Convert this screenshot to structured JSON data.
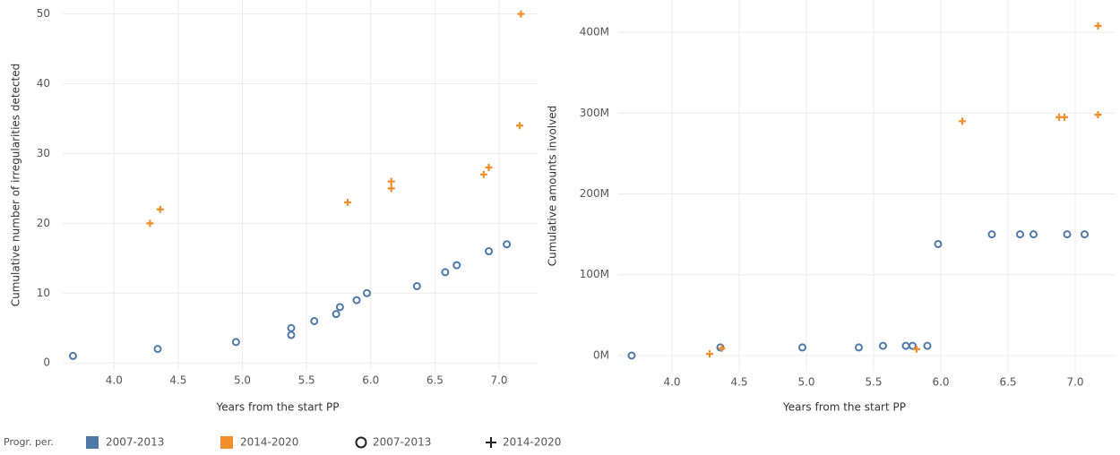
{
  "chart_data": [
    {
      "type": "scatter",
      "x_label": "Years from the start PP",
      "y_label": "Cumulative number of irregularities detected",
      "legend_title": "Progr. per.",
      "xlim": [
        3.6,
        7.3
      ],
      "ylim": [
        -1,
        52
      ],
      "xticks": [
        {
          "value": 4,
          "label": "4.0"
        },
        4.5,
        {
          "value": 5,
          "label": "5.0"
        },
        5.5,
        {
          "value": 6,
          "label": "6.0"
        },
        6.5,
        {
          "value": 7,
          "label": "7.0"
        }
      ],
      "yticks": [
        0,
        10,
        20,
        30,
        40,
        50
      ],
      "grid": true,
      "series": [
        {
          "name": "2007-2013",
          "color": "#4e79a7",
          "marker": "circle",
          "x": [
            3.68,
            4.34,
            4.95,
            5.38,
            5.38,
            5.56,
            5.73,
            5.76,
            5.89,
            5.97,
            6.36,
            6.58,
            6.67,
            6.92,
            7.06
          ],
          "values": [
            1,
            2,
            3,
            4,
            5,
            6,
            7,
            8,
            9,
            10,
            11,
            13,
            14,
            16,
            17
          ]
        },
        {
          "name": "2014-2020",
          "color": "#f28e2b",
          "marker": "plus",
          "x": [
            4.28,
            4.36,
            5.82,
            6.16,
            6.16,
            6.88,
            6.92,
            7.16,
            7.17
          ],
          "values": [
            20,
            22,
            23,
            25,
            26,
            27,
            28,
            34,
            50
          ]
        }
      ]
    },
    {
      "type": "scatter",
      "x_label": "Years from the start PP",
      "y_label": "Cumulative amounts involved",
      "xlim": [
        3.6,
        7.3
      ],
      "ylim": [
        -20000000,
        440000000
      ],
      "xticks": [
        {
          "value": 4,
          "label": "4.0"
        },
        4.5,
        {
          "value": 5,
          "label": "5.0"
        },
        5.5,
        {
          "value": 6,
          "label": "6.0"
        },
        6.5,
        {
          "value": 7,
          "label": "7.0"
        }
      ],
      "yticks": [
        {
          "value": 0,
          "label": "0M"
        },
        {
          "value": 100000000,
          "label": "100M"
        },
        {
          "value": 200000000,
          "label": "200M"
        },
        {
          "value": 300000000,
          "label": "300M"
        },
        {
          "value": 400000000,
          "label": "400M"
        }
      ],
      "grid": true,
      "series": [
        {
          "name": "2007-2013",
          "color": "#4e79a7",
          "marker": "circle",
          "x": [
            3.7,
            4.36,
            4.97,
            5.39,
            5.57,
            5.74,
            5.79,
            5.9,
            5.98,
            6.38,
            6.59,
            6.69,
            6.94,
            7.07
          ],
          "values": [
            0,
            10000000,
            10000000,
            10000000,
            12000000,
            12000000,
            12000000,
            12000000,
            138000000,
            150000000,
            150000000,
            150000000,
            150000000,
            150000000
          ]
        },
        {
          "name": "2014-2020",
          "color": "#f28e2b",
          "marker": "plus",
          "x": [
            4.28,
            4.37,
            5.82,
            6.16,
            6.88,
            6.92,
            7.17,
            7.17
          ],
          "values": [
            2000000,
            9000000,
            8000000,
            290000000,
            295000000,
            295000000,
            298000000,
            408000000
          ]
        }
      ]
    }
  ]
}
